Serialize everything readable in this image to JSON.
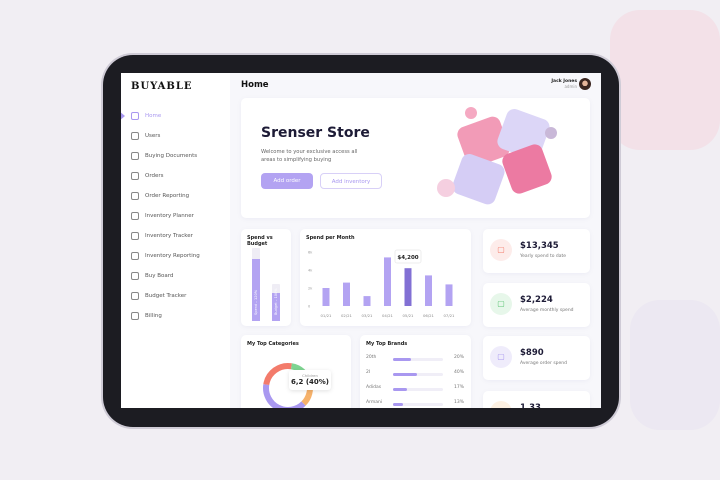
{
  "app": {
    "logo": "BUYABLE",
    "page_title": "Home"
  },
  "user": {
    "name": "Jack Jones",
    "role": "admin"
  },
  "sidebar": {
    "items": [
      {
        "label": "Home",
        "icon": "home-icon",
        "active": true
      },
      {
        "label": "Users",
        "icon": "users-icon"
      },
      {
        "label": "Buying Documents",
        "icon": "document-icon"
      },
      {
        "label": "Orders",
        "icon": "bag-icon"
      },
      {
        "label": "Order Reporting",
        "icon": "report-icon"
      },
      {
        "label": "Inventory Planner",
        "icon": "planner-icon"
      },
      {
        "label": "Inventory Tracker",
        "icon": "search-icon"
      },
      {
        "label": "Inventory Reporting",
        "icon": "report-icon"
      },
      {
        "label": "Buy Board",
        "icon": "calendar-icon"
      },
      {
        "label": "Budget Tracker",
        "icon": "dollar-icon"
      },
      {
        "label": "Billing",
        "icon": "wallet-icon"
      }
    ]
  },
  "hero": {
    "title": "Srenser Store",
    "subtitle": "Welcome to your exclusive access all areas to simplifying buying",
    "add_order": "Add order",
    "add_inventory": "Add inventory"
  },
  "spend_vs_budget": {
    "title": "Spend vs Budget",
    "bars": [
      {
        "label": "Spend – 120%",
        "fill": 0.85
      },
      {
        "label": "Budget – 100%",
        "fill": 0.75
      }
    ]
  },
  "chart_data": {
    "type": "bar",
    "title": "Spend per Month",
    "categories": [
      "01/21",
      "02/21",
      "03/21",
      "04/21",
      "05/21",
      "06/21",
      "07/21"
    ],
    "values": [
      2000,
      2600,
      1100,
      5400,
      4200,
      3400,
      2400
    ],
    "yticks": [
      "0",
      "2k",
      "4k",
      "6k"
    ],
    "ylim": [
      0,
      6000
    ],
    "highlight_index": 4,
    "tooltip": "$4,200",
    "bar_color": "#b3a3f2",
    "highlight_color": "#8270d4"
  },
  "top_categories": {
    "title": "My Top Categories",
    "tooltip_label": "Children",
    "tooltip_value": "6,2 (40%)",
    "segments": [
      {
        "color": "#a998f0",
        "value": 40
      },
      {
        "color": "#f37b6b",
        "value": 25
      },
      {
        "color": "#7ed491",
        "value": 18
      },
      {
        "color": "#f6b26b",
        "value": 17
      }
    ]
  },
  "top_brands": {
    "title": "My Top Brands",
    "items": [
      {
        "name": "20th",
        "pct": "20%",
        "v": 0.35
      },
      {
        "name": "2I",
        "pct": "40%",
        "v": 0.47
      },
      {
        "name": "Adidas",
        "pct": "17%",
        "v": 0.27
      },
      {
        "name": "Armani",
        "pct": "13%",
        "v": 0.2
      }
    ]
  },
  "stats": [
    {
      "value": "$13,345",
      "label": "Yearly spend to date",
      "color": "#f37b6b",
      "bg": "#fdecea"
    },
    {
      "value": "$2,224",
      "label": "Average monthly spend",
      "color": "#5cc474",
      "bg": "#e7f7ea"
    },
    {
      "value": "$890",
      "label": "Average order spend",
      "color": "#a998f0",
      "bg": "#efecfb"
    },
    {
      "value": "1,33",
      "label": "",
      "color": "#f6b26b",
      "bg": "#fdf1e3"
    }
  ]
}
